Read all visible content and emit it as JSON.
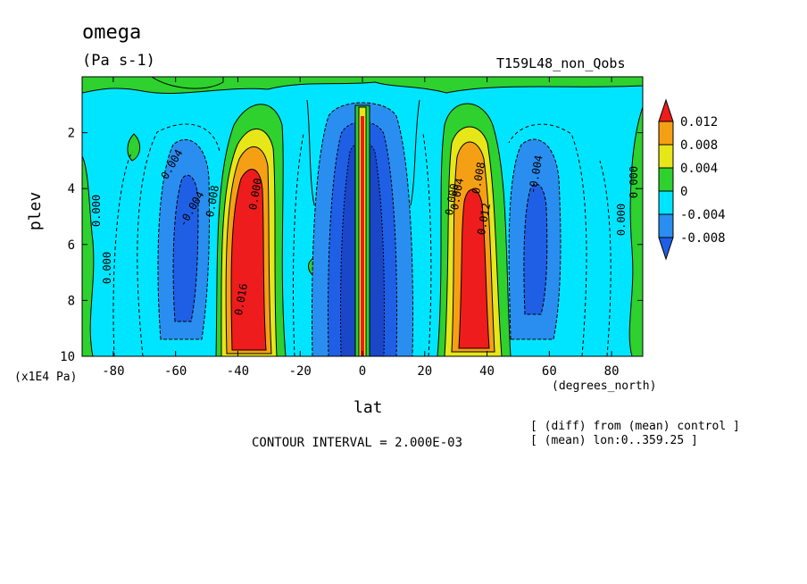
{
  "chart_data": {
    "type": "contour",
    "title": "omega",
    "units": "(Pa s-1)",
    "run": "T159L48_non_Qobs",
    "xlabel": "lat",
    "x_units": "(degrees_north)",
    "ylabel": "plev",
    "y_units": "(x1E4 Pa)",
    "xlim": [
      -90,
      90
    ],
    "ylim": [
      0,
      10
    ],
    "y_inverted": true,
    "x_ticks": [
      "-80",
      "-60",
      "-40",
      "-20",
      "0",
      "20",
      "40",
      "60",
      "80"
    ],
    "x_tick_values": [
      -80,
      -60,
      -40,
      -20,
      0,
      20,
      40,
      60,
      80
    ],
    "y_ticks": [
      "2",
      "4",
      "6",
      "8",
      "10"
    ],
    "y_tick_values": [
      2,
      4,
      6,
      8,
      10
    ],
    "contour_interval": "CONTOUR INTERVAL = 2.000E-03",
    "notes": [
      "[ (diff) from (mean) control ]",
      "[ (mean) lon:0..359.25 ]"
    ],
    "colorbar": {
      "levels": [
        "0.012",
        "0.008",
        "0.004",
        "0",
        "-0.004",
        "-0.008"
      ],
      "colors": [
        "#ee1c1c",
        "#f5a014",
        "#e6e619",
        "#2ed12e",
        "#00e5ff",
        "#2a8ef0",
        "#1f5fe6"
      ]
    },
    "features": [
      {
        "lat": -55,
        "plev_top": 2,
        "plev_bottom": 9,
        "sign": "negative",
        "peak": -0.008
      },
      {
        "lat": -37,
        "plev_top": 1.5,
        "plev_bottom": 9.7,
        "sign": "positive",
        "peak": 0.016
      },
      {
        "lat": 0,
        "plev_top": 1,
        "plev_bottom": 10,
        "sign": "mixed",
        "peak": -0.02
      },
      {
        "lat": 37,
        "plev_top": 1.5,
        "plev_bottom": 9.7,
        "sign": "positive",
        "peak": 0.014
      },
      {
        "lat": 55,
        "plev_top": 2,
        "plev_bottom": 9,
        "sign": "negative",
        "peak": -0.008
      }
    ],
    "contour_labels": [
      "0.004",
      "-0.004",
      "0.008",
      "0.000",
      "0.016",
      "0.012",
      "0.008",
      "0.004",
      "-0.004",
      "0.000",
      "0.000",
      "0.000",
      "0.000",
      "0.000"
    ]
  }
}
